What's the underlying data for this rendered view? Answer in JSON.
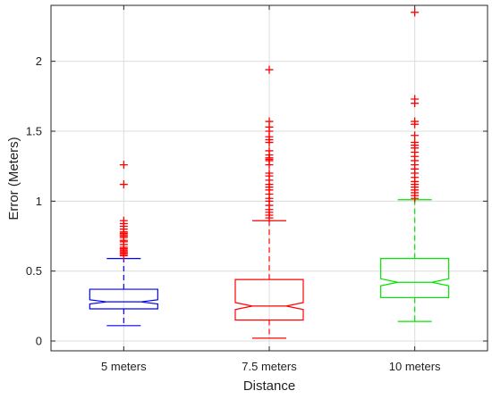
{
  "chart_data": {
    "type": "box",
    "xlabel": "Distance",
    "ylabel": "Error (Meters)",
    "ylim": [
      -0.07,
      2.4
    ],
    "yticks": [
      0,
      0.5,
      1,
      1.5,
      2
    ],
    "ytick_labels": [
      "0",
      "0.5",
      "1",
      "1.5",
      "2"
    ],
    "grid": true,
    "notched": true,
    "categories": [
      "5 meters",
      "7.5 meters",
      "10 meters"
    ],
    "series": [
      {
        "category": "5 meters",
        "color": "#0000ff",
        "whisker_low": 0.11,
        "q1": 0.23,
        "median": 0.28,
        "q3": 0.37,
        "whisker_high": 0.59,
        "notch_low": 0.265,
        "notch_high": 0.295,
        "outliers": [
          0.61,
          0.62,
          0.63,
          0.64,
          0.65,
          0.66,
          0.67,
          0.69,
          0.71,
          0.72,
          0.74,
          0.75,
          0.76,
          0.77,
          0.78,
          0.8,
          0.82,
          0.84,
          0.86,
          1.12,
          1.26
        ]
      },
      {
        "category": "7.5 meters",
        "color": "#ff0000",
        "whisker_low": 0.02,
        "q1": 0.15,
        "median": 0.25,
        "q3": 0.44,
        "whisker_high": 0.86,
        "notch_low": 0.225,
        "notch_high": 0.275,
        "outliers": [
          0.88,
          0.9,
          0.92,
          0.94,
          0.97,
          1.0,
          1.02,
          1.05,
          1.08,
          1.1,
          1.12,
          1.15,
          1.18,
          1.2,
          1.26,
          1.29,
          1.3,
          1.31,
          1.33,
          1.36,
          1.42,
          1.44,
          1.46,
          1.5,
          1.53,
          1.57,
          1.94
        ]
      },
      {
        "category": "10 meters",
        "color": "#00e600",
        "whisker_low": 0.14,
        "q1": 0.31,
        "median": 0.42,
        "q3": 0.59,
        "whisker_high": 1.01,
        "notch_low": 0.395,
        "notch_high": 0.445,
        "outliers": [
          1.02,
          1.04,
          1.06,
          1.08,
          1.1,
          1.12,
          1.14,
          1.17,
          1.2,
          1.23,
          1.26,
          1.29,
          1.32,
          1.35,
          1.38,
          1.4,
          1.42,
          1.47,
          1.55,
          1.57,
          1.7,
          1.73,
          2.35
        ]
      }
    ]
  }
}
